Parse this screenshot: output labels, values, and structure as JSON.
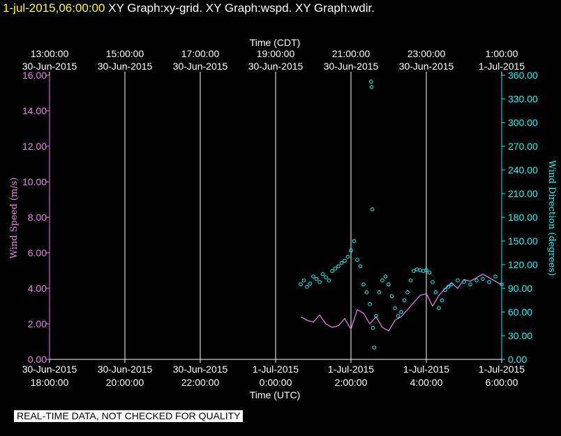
{
  "header": {
    "timestamp": "1-jul-2015,06:00:00",
    "titles": "XY Graph:xy-grid.  XY Graph:wspd.  XY Graph:wdir."
  },
  "notice": "REAL-TIME DATA, NOT CHECKED FOR QUALITY",
  "colors": {
    "speed": "#ee82ee",
    "direction": "#00ffff",
    "grid": "#ffffff",
    "background": "#000000"
  },
  "chart_data": {
    "type": "line",
    "top_axis": {
      "title": "Time (CDT)",
      "ticks": [
        {
          "time": "13:00:00",
          "date": "30-Jun-2015"
        },
        {
          "time": "15:00:00",
          "date": "30-Jun-2015"
        },
        {
          "time": "17:00:00",
          "date": "30-Jun-2015"
        },
        {
          "time": "19:00:00",
          "date": "30-Jun-2015"
        },
        {
          "time": "21:00:00",
          "date": "30-Jun-2015"
        },
        {
          "time": "23:00:00",
          "date": "30-Jun-2015"
        },
        {
          "time": "1:00:00",
          "date": "1-Jul-2015"
        }
      ]
    },
    "bottom_axis": {
      "title": "Time (UTC)",
      "ticks": [
        {
          "date": "30-Jun-2015",
          "time": "18:00:00"
        },
        {
          "date": "30-Jun-2015",
          "time": "20:00:00"
        },
        {
          "date": "30-Jun-2015",
          "time": "22:00:00"
        },
        {
          "date": "1-Jul-2015",
          "time": "0:00:00"
        },
        {
          "date": "1-Jul-2015",
          "time": "2:00:00"
        },
        {
          "date": "1-Jul-2015",
          "time": "4:00:00"
        },
        {
          "date": "1-Jul-2015",
          "time": "6:00:00"
        }
      ]
    },
    "x_range_utc": [
      "2015-06-30 18:00",
      "2015-07-01 06:00"
    ],
    "left_axis": {
      "label": "Wind Speed (m/s)",
      "range": [
        0,
        16
      ],
      "ticks": [
        "0.00",
        "2.00",
        "4.00",
        "6.00",
        "8.00",
        "10.00",
        "12.00",
        "14.00",
        "16.00"
      ]
    },
    "right_axis": {
      "label": "Wind Direction (degrees)",
      "range": [
        0,
        360
      ],
      "ticks": [
        "0.00",
        "30.00",
        "60.00",
        "90.00",
        "120.00",
        "150.00",
        "180.00",
        "210.00",
        "240.00",
        "270.00",
        "300.00",
        "330.00",
        "360.00"
      ]
    },
    "grid": "vertical",
    "series": [
      {
        "name": "wspd",
        "style": "line",
        "axis": "left",
        "points": [
          [
            "2015-07-01 00:40",
            2.4
          ],
          [
            "2015-07-01 00:50",
            2.2
          ],
          [
            "2015-07-01 01:00",
            2.1
          ],
          [
            "2015-07-01 01:10",
            2.5
          ],
          [
            "2015-07-01 01:20",
            2.0
          ],
          [
            "2015-07-01 01:30",
            1.8
          ],
          [
            "2015-07-01 01:40",
            1.9
          ],
          [
            "2015-07-01 01:50",
            2.3
          ],
          [
            "2015-07-01 02:00",
            1.7
          ],
          [
            "2015-07-01 02:10",
            2.8
          ],
          [
            "2015-07-01 02:20",
            2.6
          ],
          [
            "2015-07-01 02:30",
            2.0
          ],
          [
            "2015-07-01 02:40",
            2.4
          ],
          [
            "2015-07-01 02:50",
            1.8
          ],
          [
            "2015-07-01 03:00",
            1.6
          ],
          [
            "2015-07-01 03:10",
            2.2
          ],
          [
            "2015-07-01 03:20",
            2.4
          ],
          [
            "2015-07-01 03:30",
            2.8
          ],
          [
            "2015-07-01 03:40",
            3.2
          ],
          [
            "2015-07-01 03:50",
            3.6
          ],
          [
            "2015-07-01 04:00",
            3.7
          ],
          [
            "2015-07-01 04:10",
            3.0
          ],
          [
            "2015-07-01 04:20",
            3.6
          ],
          [
            "2015-07-01 04:30",
            4.0
          ],
          [
            "2015-07-01 04:40",
            4.3
          ],
          [
            "2015-07-01 04:50",
            4.0
          ],
          [
            "2015-07-01 05:00",
            4.5
          ],
          [
            "2015-07-01 05:10",
            4.4
          ],
          [
            "2015-07-01 05:20",
            4.6
          ],
          [
            "2015-07-01 05:30",
            4.8
          ],
          [
            "2015-07-01 05:40",
            4.6
          ],
          [
            "2015-07-01 05:50",
            4.4
          ],
          [
            "2015-07-01 06:00",
            4.2
          ]
        ]
      },
      {
        "name": "wdir",
        "style": "points",
        "axis": "right",
        "points": [
          [
            "2015-07-01 00:40",
            95
          ],
          [
            "2015-07-01 00:45",
            100
          ],
          [
            "2015-07-01 00:50",
            92
          ],
          [
            "2015-07-01 00:55",
            96
          ],
          [
            "2015-07-01 01:00",
            105
          ],
          [
            "2015-07-01 01:05",
            102
          ],
          [
            "2015-07-01 01:10",
            98
          ],
          [
            "2015-07-01 01:15",
            108
          ],
          [
            "2015-07-01 01:20",
            104
          ],
          [
            "2015-07-01 01:25",
            100
          ],
          [
            "2015-07-01 01:30",
            112
          ],
          [
            "2015-07-01 01:35",
            115
          ],
          [
            "2015-07-01 01:40",
            118
          ],
          [
            "2015-07-01 01:45",
            122
          ],
          [
            "2015-07-01 01:50",
            125
          ],
          [
            "2015-07-01 01:55",
            130
          ],
          [
            "2015-07-01 02:00",
            138
          ],
          [
            "2015-07-01 02:05",
            150
          ],
          [
            "2015-07-01 02:10",
            126
          ],
          [
            "2015-07-01 02:15",
            118
          ],
          [
            "2015-07-01 02:20",
            95
          ],
          [
            "2015-07-01 02:25",
            85
          ],
          [
            "2015-07-01 02:30",
            70
          ],
          [
            "2015-07-01 02:32",
            352
          ],
          [
            "2015-07-01 02:33",
            345
          ],
          [
            "2015-07-01 02:34",
            190
          ],
          [
            "2015-07-01 02:35",
            40
          ],
          [
            "2015-07-01 02:37",
            15
          ],
          [
            "2015-07-01 02:40",
            55
          ],
          [
            "2015-07-01 02:45",
            85
          ],
          [
            "2015-07-01 02:50",
            100
          ],
          [
            "2015-07-01 02:55",
            105
          ],
          [
            "2015-07-01 03:00",
            95
          ],
          [
            "2015-07-01 03:05",
            80
          ],
          [
            "2015-07-01 03:10",
            65
          ],
          [
            "2015-07-01 03:15",
            55
          ],
          [
            "2015-07-01 03:20",
            60
          ],
          [
            "2015-07-01 03:25",
            75
          ],
          [
            "2015-07-01 03:30",
            85
          ],
          [
            "2015-07-01 03:35",
            100
          ],
          [
            "2015-07-01 03:40",
            112
          ],
          [
            "2015-07-01 03:45",
            114
          ],
          [
            "2015-07-01 03:50",
            113
          ],
          [
            "2015-07-01 03:55",
            112
          ],
          [
            "2015-07-01 04:00",
            113
          ],
          [
            "2015-07-01 04:05",
            110
          ],
          [
            "2015-07-01 04:10",
            98
          ],
          [
            "2015-07-01 04:15",
            85
          ],
          [
            "2015-07-01 04:20",
            65
          ],
          [
            "2015-07-01 04:25",
            75
          ],
          [
            "2015-07-01 04:30",
            88
          ],
          [
            "2015-07-01 04:35",
            92
          ],
          [
            "2015-07-01 04:40",
            95
          ],
          [
            "2015-07-01 04:50",
            100
          ],
          [
            "2015-07-01 05:00",
            98
          ],
          [
            "2015-07-01 05:10",
            95
          ],
          [
            "2015-07-01 05:20",
            100
          ],
          [
            "2015-07-01 05:30",
            102
          ],
          [
            "2015-07-01 05:40",
            98
          ],
          [
            "2015-07-01 05:50",
            105
          ],
          [
            "2015-07-01 06:00",
            95
          ]
        ]
      }
    ]
  }
}
